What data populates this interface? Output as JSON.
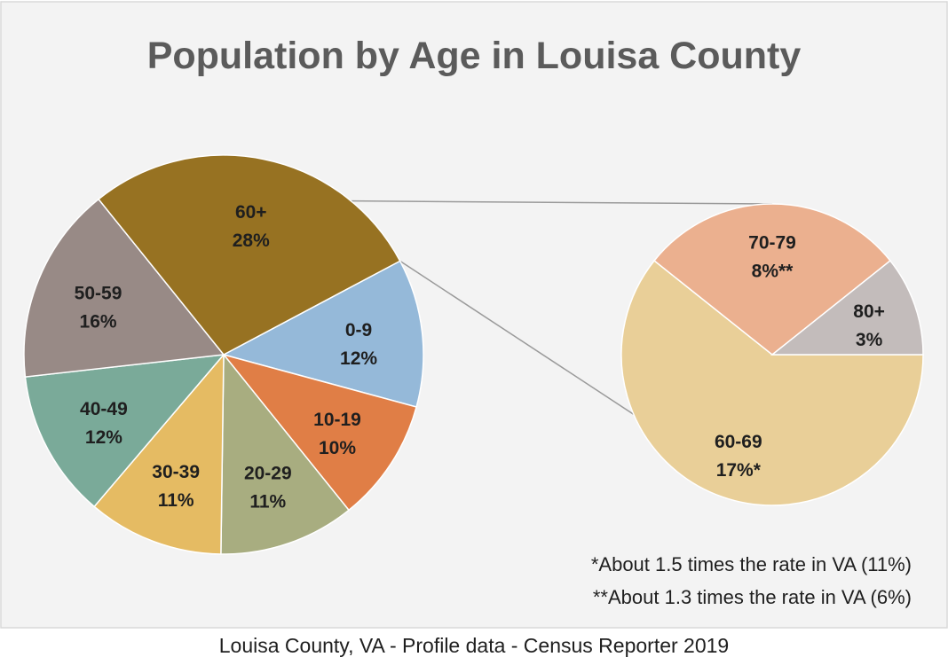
{
  "chart_data": {
    "type": "pie",
    "title": "Population by Age in Louisa County",
    "main_pie": {
      "slices": [
        {
          "label": "0-9",
          "pct_text": "12%",
          "value": 12,
          "color": "#95b9d9"
        },
        {
          "label": "10-19",
          "pct_text": "10%",
          "value": 10,
          "color": "#e07e46"
        },
        {
          "label": "20-29",
          "pct_text": "11%",
          "value": 11,
          "color": "#a8ad80"
        },
        {
          "label": "30-39",
          "pct_text": "11%",
          "value": 11,
          "color": "#e5bb63"
        },
        {
          "label": "40-49",
          "pct_text": "12%",
          "value": 12,
          "color": "#7aaa99"
        },
        {
          "label": "50-59",
          "pct_text": "16%",
          "value": 16,
          "color": "#988a86"
        },
        {
          "label": "60+",
          "pct_text": "28%",
          "value": 28,
          "color": "#977222"
        }
      ]
    },
    "sub_pie": {
      "parent_slice": "60+",
      "slices": [
        {
          "label": "60-69",
          "pct_text": "17%*",
          "value": 17,
          "color": "#e9cf98"
        },
        {
          "label": "70-79",
          "pct_text": "8%**",
          "value": 8,
          "color": "#ebb08f"
        },
        {
          "label": "80+",
          "pct_text": "3%",
          "value": 3,
          "color": "#c3bcbb"
        }
      ]
    },
    "footnotes": [
      "*About 1.5 times the rate in VA (11%)",
      "**About 1.3 times the rate in VA (6%)"
    ],
    "colors": {
      "background": "#f3f3f3",
      "title": "#5b5b5b"
    }
  },
  "caption": "Louisa County, VA - Profile data - Census Reporter 2019"
}
